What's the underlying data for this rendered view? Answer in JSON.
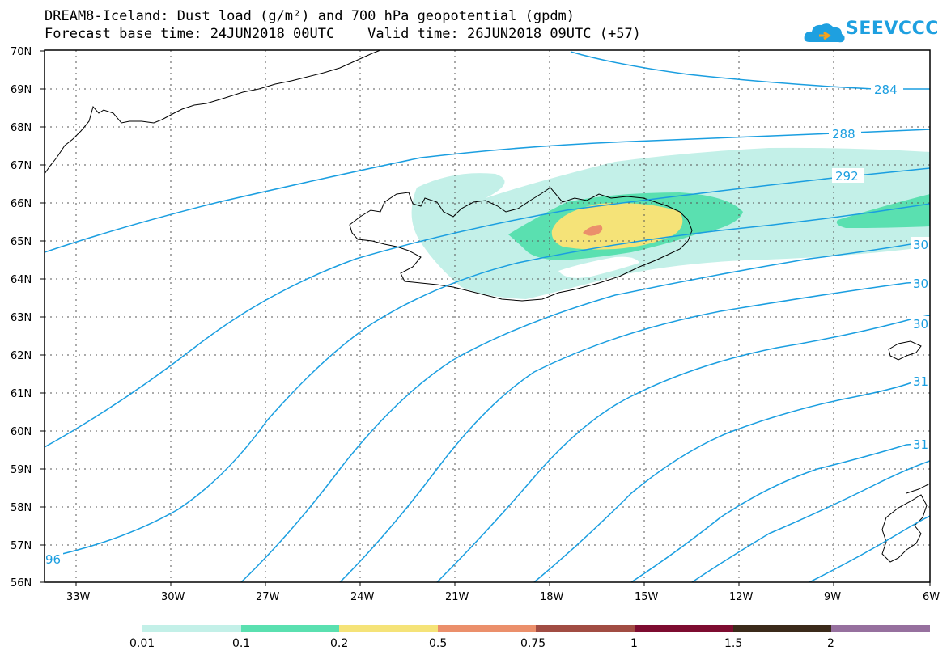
{
  "title_line1": "DREAM8-Iceland: Dust load (g/m²) and 700 hPa geopotential (gpdm)",
  "title_line2": "Forecast base time: 24JUN2018 00UTC    Valid time: 26JUN2018 09UTC (+57)",
  "logo_text": "SEEVCCC",
  "lat_labels": [
    "70N",
    "69N",
    "68N",
    "67N",
    "66N",
    "65N",
    "64N",
    "63N",
    "62N",
    "61N",
    "60N",
    "59N",
    "58N",
    "57N",
    "56N"
  ],
  "lon_labels": [
    "33W",
    "30W",
    "27W",
    "24W",
    "21W",
    "18W",
    "15W",
    "12W",
    "9W",
    "6W"
  ],
  "contour_labels": [
    "284",
    "288",
    "292",
    "30",
    "30",
    "30",
    "31",
    "31",
    "96"
  ],
  "colorbar": {
    "labels": [
      "0.01",
      "0.1",
      "0.2",
      "0.5",
      "0.75",
      "1",
      "1.5",
      "2"
    ],
    "colors": [
      "#c3f0e8",
      "#5ae0b0",
      "#f5e378",
      "#eb8f6b",
      "#a14c43",
      "#7d0c30",
      "#3b2a1a",
      "#96709e"
    ]
  },
  "colors": {
    "contour": "#1a9ee0",
    "coast": "#000000",
    "grid": "#555555"
  }
}
